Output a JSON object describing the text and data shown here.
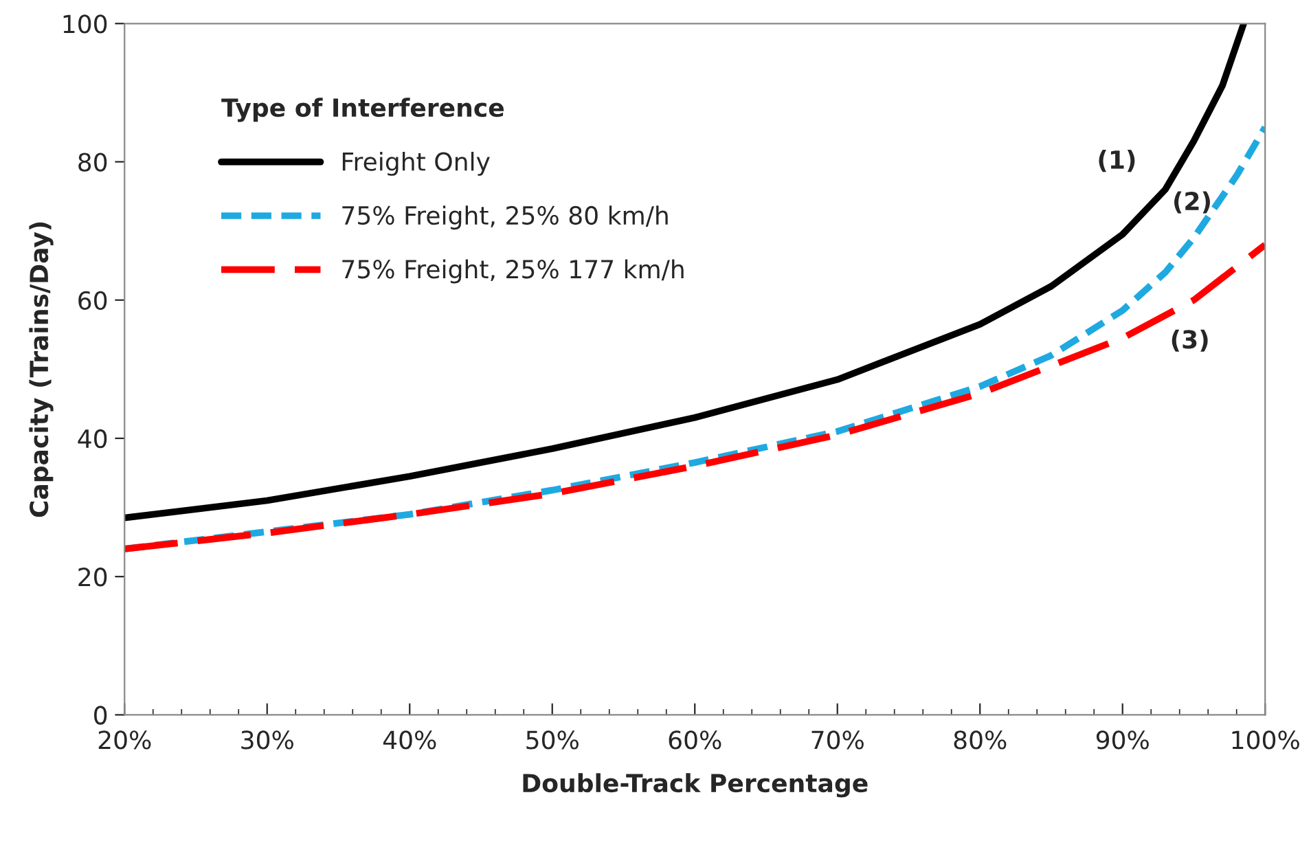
{
  "chart_data": {
    "type": "line",
    "xlabel": "Double-Track Percentage",
    "ylabel": "Capacity (Trains/Day)",
    "legend_title": "Type of Interference",
    "legend": "top left",
    "grid": false,
    "series": [
      {
        "name": "Freight Only",
        "color": "#000000",
        "line_style": "solid",
        "x": [
          20,
          30,
          40,
          50,
          60,
          70,
          80,
          85,
          90,
          93,
          95,
          97,
          98.5
        ],
        "values": [
          28.5,
          31,
          34.5,
          38.5,
          43,
          48.5,
          56.5,
          62,
          69.5,
          76,
          83,
          91,
          100
        ]
      },
      {
        "name": "75% Freight, 25% 80 km/h",
        "color": "#1fa9e1",
        "line_style": "dashed",
        "x": [
          20,
          30,
          40,
          50,
          60,
          70,
          80,
          85,
          90,
          93,
          95,
          98,
          100
        ],
        "values": [
          24,
          26.5,
          29,
          32.5,
          36.5,
          41,
          47.5,
          52,
          58.5,
          64,
          69,
          78,
          85
        ]
      },
      {
        "name": "75% Freight, 25% 177 km/h",
        "color": "#ff0000",
        "line_style": "longdash",
        "x": [
          20,
          30,
          40,
          50,
          60,
          70,
          80,
          85,
          90,
          95,
          100
        ],
        "values": [
          24,
          26.3,
          29,
          32,
          36,
          40.5,
          46.5,
          50.5,
          54.5,
          60,
          68
        ]
      }
    ],
    "xlim": [
      20,
      100
    ],
    "ylim": [
      0,
      100
    ],
    "xticks": [
      {
        "value": 20,
        "label": "20%"
      },
      {
        "value": 30,
        "label": "30%"
      },
      {
        "value": 40,
        "label": "40%"
      },
      {
        "value": 50,
        "label": "50%"
      },
      {
        "value": 60,
        "label": "60%"
      },
      {
        "value": 70,
        "label": "70%"
      },
      {
        "value": 80,
        "label": "80%"
      },
      {
        "value": 90,
        "label": "90%"
      },
      {
        "value": 100,
        "label": "100%"
      }
    ],
    "yticks": [
      0,
      20,
      40,
      60,
      80,
      100
    ],
    "annotations": [
      "(1)",
      "(2)",
      "(3)"
    ]
  }
}
